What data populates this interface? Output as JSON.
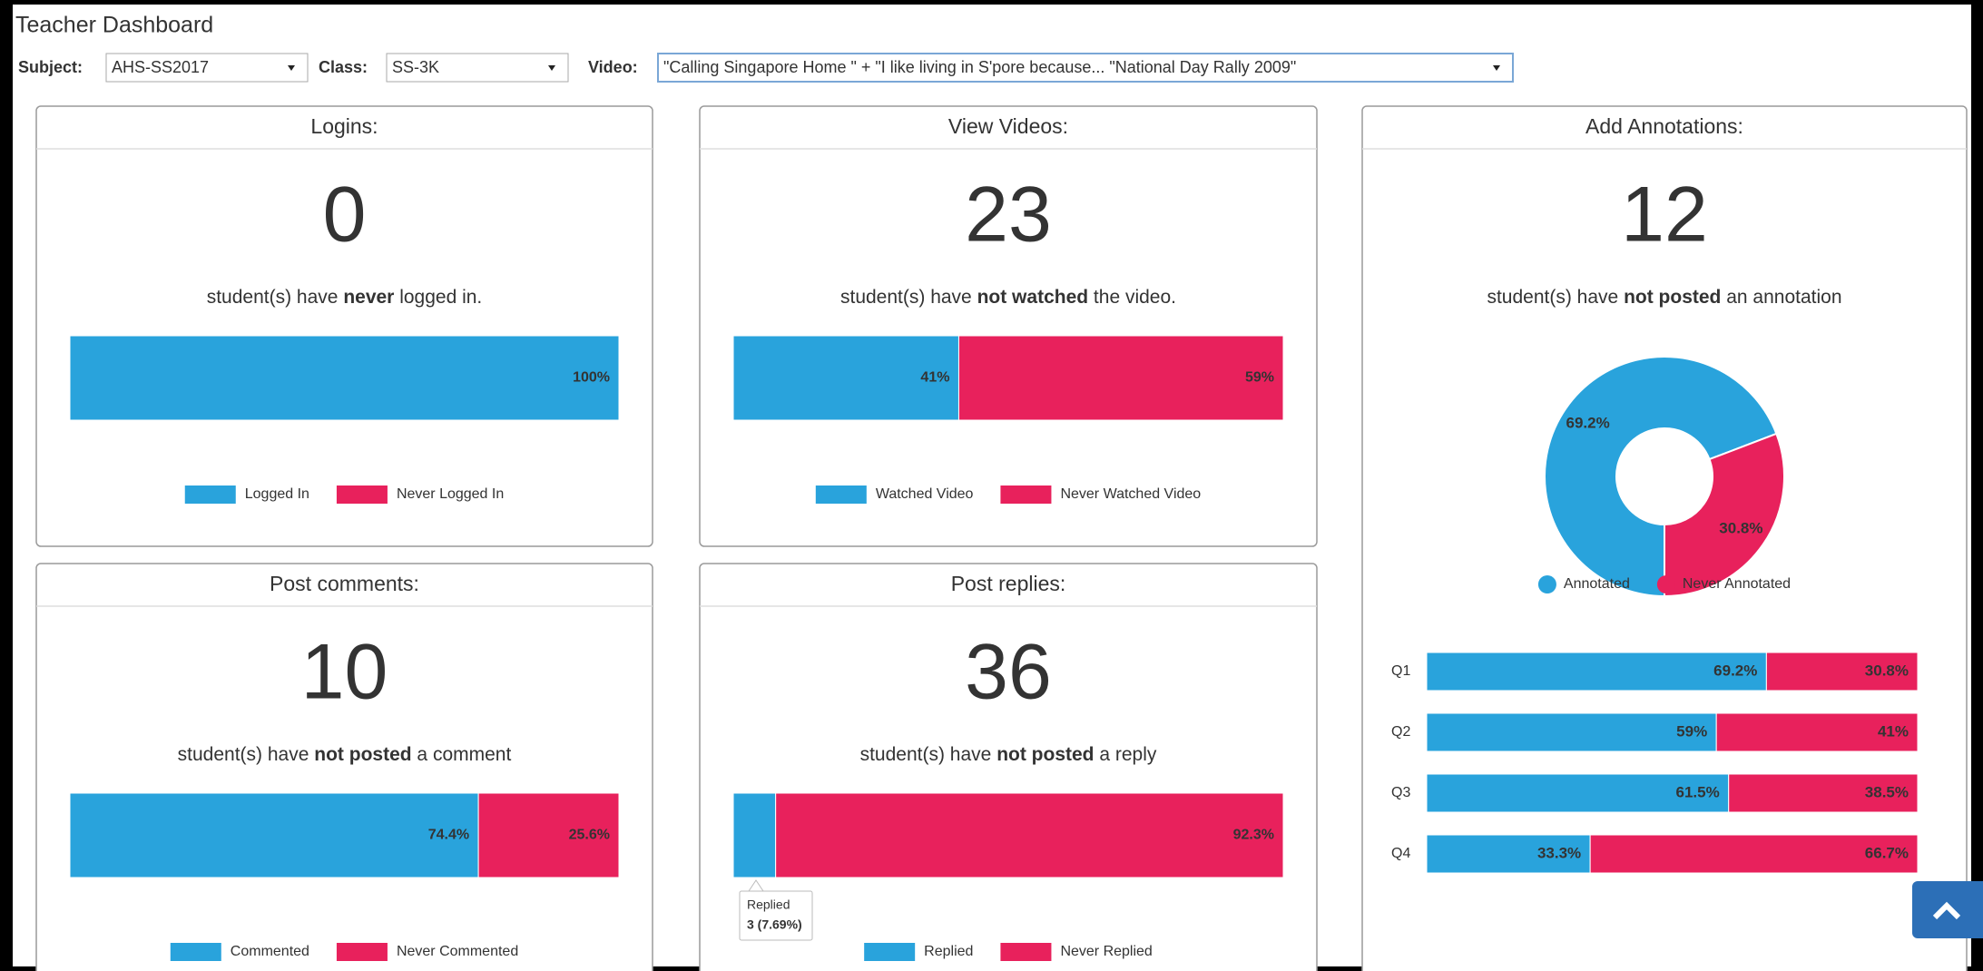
{
  "header": {
    "title": "Teacher Dashboard"
  },
  "filters": [
    {
      "label": "Subject:",
      "value": "AHS-SS2017"
    },
    {
      "label": "Class:",
      "value": "SS-3K"
    },
    {
      "label": "Video:",
      "value": "\"Calling Singapore Home \" + \"I like living in S'pore because... \"National Day Rally 2009\""
    }
  ],
  "panels": [
    {
      "title": "Logins:",
      "count": 0,
      "message": [
        "student(s) have ",
        "never",
        " logged in."
      ],
      "series": [
        {
          "name": "Logged In",
          "color": "#29a3dc",
          "value": 100,
          "label": "100%"
        },
        {
          "name": "Never Logged In",
          "color": "#e8215c",
          "value": 0
        }
      ]
    },
    {
      "title": "View Videos:",
      "count": 23,
      "message": [
        "student(s) have ",
        "not watched",
        " the video."
      ],
      "series": [
        {
          "name": "Watched Video",
          "color": "#29a3dc",
          "value": 41,
          "label": "41%"
        },
        {
          "name": "Never Watched Video",
          "color": "#e8215c",
          "value": 59,
          "label": "59%"
        }
      ]
    },
    {
      "title": "Add Annotations:",
      "count": 12,
      "message": [
        "student(s) have ",
        "not posted",
        " an annotation"
      ],
      "series": [
        {
          "name": "Annotated",
          "color": "#29a3dc",
          "value": 69.2,
          "label": "69.2%"
        },
        {
          "name": "Never Annotated",
          "color": "#e8215c",
          "value": 30.8,
          "label": "30.8%"
        }
      ],
      "questions": [
        {
          "label": "Q1",
          "values": [
            69.2,
            30.8
          ],
          "value_labels": [
            "69.2%",
            "30.8%"
          ]
        },
        {
          "label": "Q2",
          "values": [
            59,
            41
          ],
          "value_labels": [
            "59%",
            "41%"
          ]
        },
        {
          "label": "Q3",
          "values": [
            61.5,
            38.5
          ],
          "value_labels": [
            "61.5%",
            "38.5%"
          ]
        },
        {
          "label": "Q4",
          "values": [
            33.3,
            66.7
          ],
          "value_labels": [
            "33.3%",
            "66.7%"
          ]
        }
      ]
    },
    {
      "title": "Post comments:",
      "count": 10,
      "message": [
        "student(s) have ",
        "not posted",
        " a comment"
      ],
      "series": [
        {
          "name": "Commented",
          "color": "#29a3dc",
          "value": 74.4,
          "label": "74.4%"
        },
        {
          "name": "Never Commented",
          "color": "#e8215c",
          "value": 25.6,
          "label": "25.6%"
        }
      ]
    },
    {
      "title": "Post replies:",
      "count": 36,
      "message": [
        "student(s) have ",
        "not posted",
        " a reply"
      ],
      "series": [
        {
          "name": "Replied",
          "color": "#29a3dc",
          "value": 7.7,
          "label": "7.7%"
        },
        {
          "name": "Never Replied",
          "color": "#e8215c",
          "value": 92.3,
          "label": "92.3%"
        }
      ],
      "tooltip": {
        "title": "Replied",
        "text": "3 (7.69%)"
      }
    }
  ]
}
